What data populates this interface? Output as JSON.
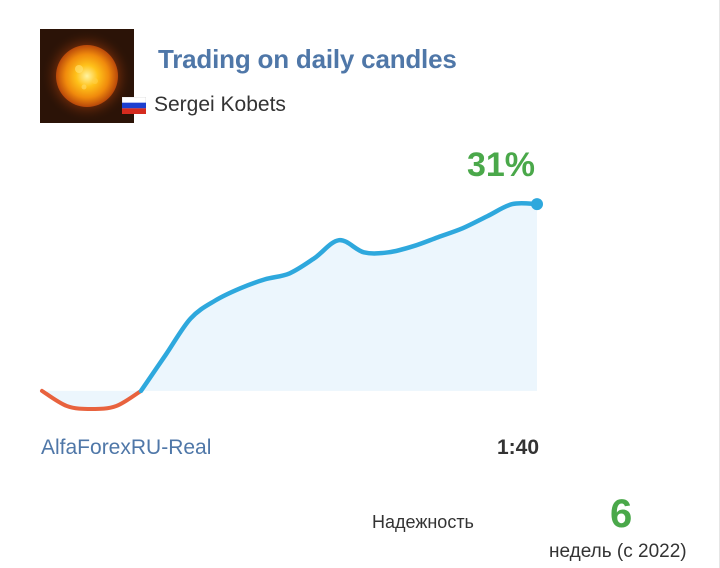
{
  "signal": {
    "title": "Trading on daily candles",
    "author": "Sergei Kobets",
    "country_flag": "russia-flag",
    "growth": "31%",
    "account": "AlfaForexRU-Real",
    "leverage": "1:40"
  },
  "reliability": {
    "label": "Надежность",
    "value": "6",
    "period": "недель (с 2022)"
  },
  "colors": {
    "title": "#4f77a8",
    "growth": "#4aa84a",
    "line_positive": "#2ea8dd",
    "line_negative": "#e8623e",
    "area_fill": "#eaf5fd"
  },
  "icons": [
    "sun-avatar-image",
    "russia-flag-icon"
  ],
  "chart_data": {
    "type": "line",
    "title": "",
    "xlabel": "",
    "ylabel": "",
    "x": [
      0,
      1,
      2,
      3,
      4,
      5,
      6,
      7,
      8,
      9,
      10,
      11,
      12,
      13,
      14,
      15,
      16,
      17,
      18,
      19,
      20
    ],
    "values": [
      0,
      -2.5,
      -3,
      -2.5,
      0,
      6,
      12,
      15,
      17,
      18.5,
      19.5,
      22,
      25,
      23,
      23,
      24,
      25.5,
      27,
      29,
      31,
      31
    ],
    "ylim": [
      -4,
      33
    ],
    "final_label": "31%",
    "grid": false,
    "legend": "none"
  }
}
